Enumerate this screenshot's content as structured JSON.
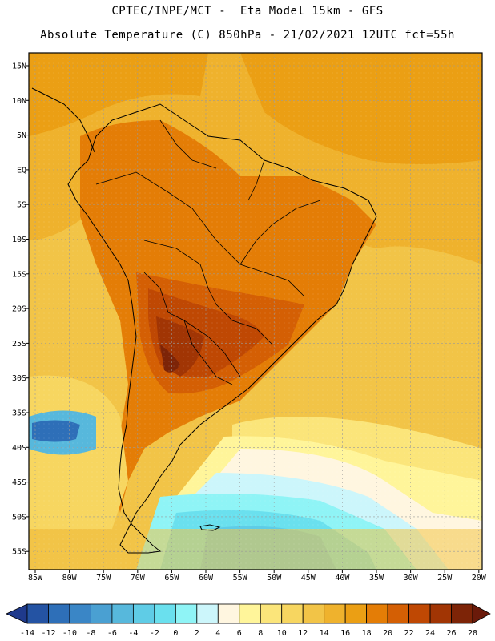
{
  "header": {
    "line1": "CPTEC/INPE/MCT -  Eta Model 15km - GFS",
    "line2": "Absolute Temperature (C) 850hPa - 21/02/2021 12UTC fct=55h"
  },
  "map": {
    "region": "South America",
    "field": "Absolute Temperature (C) 850hPa",
    "lat_ticks": [
      "15N",
      "10N",
      "5N",
      "EQ",
      "5S",
      "10S",
      "15S",
      "20S",
      "25S",
      "30S",
      "35S",
      "40S",
      "45S",
      "50S",
      "55S"
    ],
    "lon_ticks": [
      "85W",
      "80W",
      "75W",
      "70W",
      "65W",
      "60W",
      "55W",
      "50W",
      "45W",
      "40W",
      "35W",
      "30W",
      "25W",
      "20W"
    ]
  },
  "colorbar": {
    "labels": [
      "-14",
      "-12",
      "-10",
      "-8",
      "-6",
      "-4",
      "-2",
      "0",
      "2",
      "4",
      "6",
      "8",
      "10",
      "12",
      "14",
      "16",
      "18",
      "20",
      "22",
      "24",
      "26",
      "28"
    ],
    "colors": [
      "#1f3a8c",
      "#2453a3",
      "#2e6fb8",
      "#3a86c6",
      "#4aa0d2",
      "#57b8dc",
      "#5fcce6",
      "#6ae0ee",
      "#8ff4f6",
      "#ccf6fb",
      "#fff6e0",
      "#fff59a",
      "#fbe57a",
      "#f7d660",
      "#f2c447",
      "#efb22d",
      "#eb9f14",
      "#e47d06",
      "#d45f04",
      "#bf4803",
      "#a13504",
      "#7d2407",
      "#6a1a0a"
    ]
  }
}
